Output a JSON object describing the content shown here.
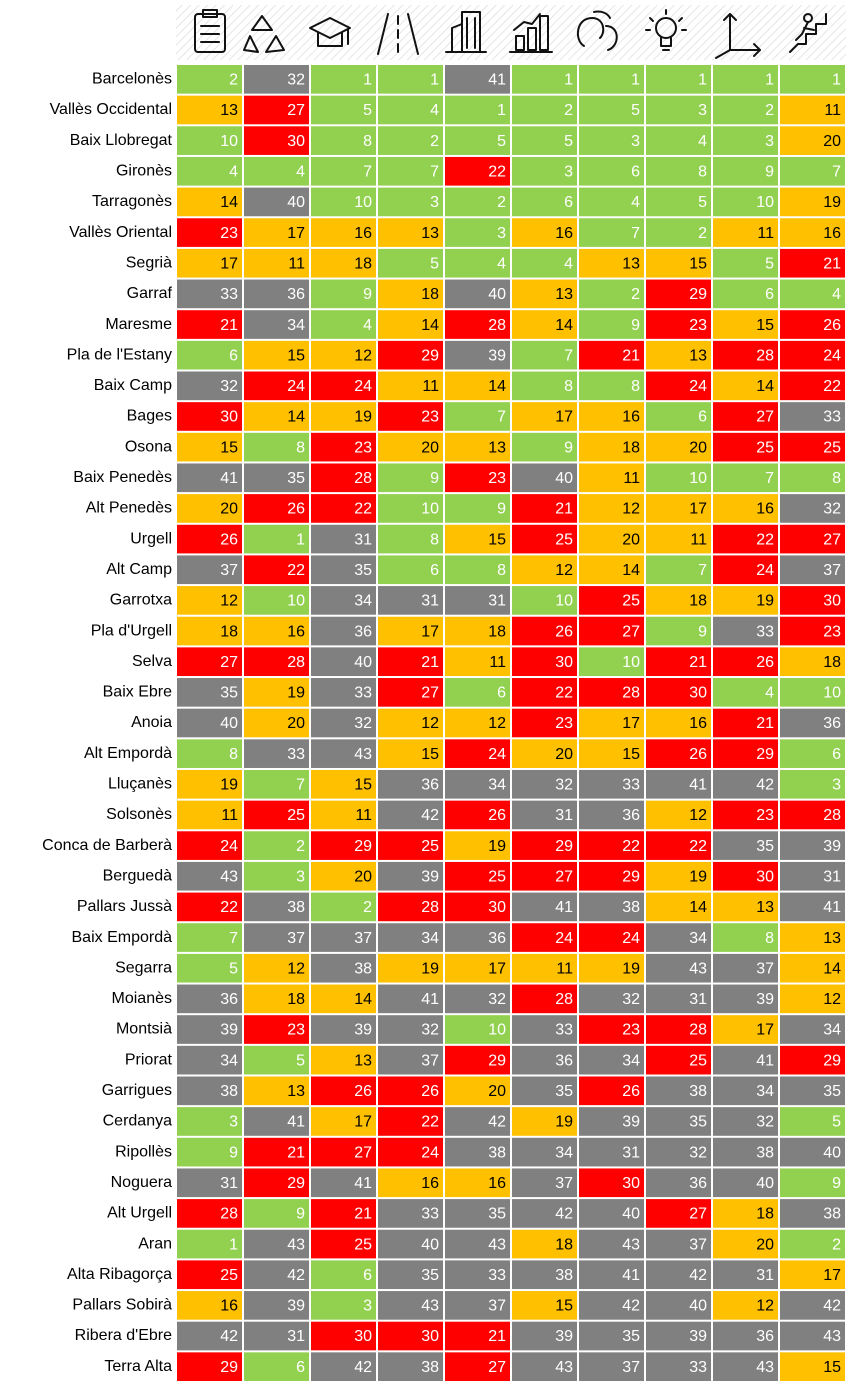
{
  "chart_data": {
    "type": "heatmap",
    "categories": [
      "Barcelonès",
      "Vallès Occidental",
      "Baix Llobregat",
      "Gironès",
      "Tarragonès",
      "Vallès Oriental",
      "Segrià",
      "Garraf",
      "Maresme",
      "Pla de l'Estany",
      "Baix Camp",
      "Bages",
      "Osona",
      "Baix Penedès",
      "Alt Penedès",
      "Urgell",
      "Alt Camp",
      "Garrotxa",
      "Pla d'Urgell",
      "Selva",
      "Baix Ebre",
      "Anoia",
      "Alt Empordà",
      "Lluçanès",
      "Solsonès",
      "Conca de Barberà",
      "Berguedà",
      "Pallars Jussà",
      "Baix Empordà",
      "Segarra",
      "Moianès",
      "Montsià",
      "Priorat",
      "Garrigues",
      "Cerdanya",
      "Ripollès",
      "Noguera",
      "Alt Urgell",
      "Aran",
      "Alta Ribagorça",
      "Pallars Sobirà",
      "Ribera d'Ebre",
      "Terra Alta"
    ],
    "values": [
      [
        2,
        32,
        1,
        1,
        41,
        1,
        1,
        1,
        1,
        1
      ],
      [
        13,
        27,
        5,
        4,
        1,
        2,
        5,
        3,
        2,
        11
      ],
      [
        10,
        30,
        8,
        2,
        5,
        5,
        3,
        4,
        3,
        20
      ],
      [
        4,
        4,
        7,
        7,
        22,
        3,
        6,
        8,
        9,
        7
      ],
      [
        14,
        40,
        10,
        3,
        2,
        6,
        4,
        5,
        10,
        19
      ],
      [
        23,
        17,
        16,
        13,
        3,
        16,
        7,
        2,
        11,
        16
      ],
      [
        17,
        11,
        18,
        5,
        4,
        4,
        13,
        15,
        5,
        21
      ],
      [
        33,
        36,
        9,
        18,
        40,
        13,
        2,
        29,
        6,
        4
      ],
      [
        21,
        34,
        4,
        14,
        28,
        14,
        9,
        23,
        15,
        26
      ],
      [
        6,
        15,
        12,
        29,
        39,
        7,
        21,
        13,
        28,
        24
      ],
      [
        32,
        24,
        24,
        11,
        14,
        8,
        8,
        24,
        14,
        22
      ],
      [
        30,
        14,
        19,
        23,
        7,
        17,
        16,
        6,
        27,
        33
      ],
      [
        15,
        8,
        23,
        20,
        13,
        9,
        18,
        20,
        25,
        25
      ],
      [
        41,
        35,
        28,
        9,
        23,
        40,
        11,
        10,
        7,
        8
      ],
      [
        20,
        26,
        22,
        10,
        9,
        21,
        12,
        17,
        16,
        32
      ],
      [
        26,
        1,
        31,
        8,
        15,
        25,
        20,
        11,
        22,
        27
      ],
      [
        37,
        22,
        35,
        6,
        8,
        12,
        14,
        7,
        24,
        37
      ],
      [
        12,
        10,
        34,
        31,
        31,
        10,
        25,
        18,
        19,
        30
      ],
      [
        18,
        16,
        36,
        17,
        18,
        26,
        27,
        9,
        33,
        23
      ],
      [
        27,
        28,
        40,
        21,
        11,
        30,
        10,
        21,
        26,
        18
      ],
      [
        35,
        19,
        33,
        27,
        6,
        22,
        28,
        30,
        4,
        10
      ],
      [
        40,
        20,
        32,
        12,
        12,
        23,
        17,
        16,
        21,
        36
      ],
      [
        8,
        33,
        43,
        15,
        24,
        20,
        15,
        26,
        29,
        6
      ],
      [
        19,
        7,
        15,
        36,
        34,
        32,
        33,
        41,
        42,
        3
      ],
      [
        11,
        25,
        11,
        42,
        26,
        31,
        36,
        12,
        23,
        28
      ],
      [
        24,
        2,
        29,
        25,
        19,
        29,
        22,
        22,
        35,
        39
      ],
      [
        43,
        3,
        20,
        39,
        25,
        27,
        29,
        19,
        30,
        31
      ],
      [
        22,
        38,
        2,
        28,
        30,
        41,
        38,
        14,
        13,
        41
      ],
      [
        7,
        37,
        37,
        34,
        36,
        24,
        24,
        34,
        8,
        13
      ],
      [
        5,
        12,
        38,
        19,
        17,
        11,
        19,
        43,
        37,
        14
      ],
      [
        36,
        18,
        14,
        41,
        32,
        28,
        32,
        31,
        39,
        12
      ],
      [
        39,
        23,
        39,
        32,
        10,
        33,
        23,
        28,
        17,
        34
      ],
      [
        34,
        5,
        13,
        37,
        29,
        36,
        34,
        25,
        41,
        29
      ],
      [
        38,
        13,
        26,
        26,
        20,
        35,
        26,
        38,
        34,
        35
      ],
      [
        3,
        41,
        17,
        22,
        42,
        19,
        39,
        35,
        32,
        5
      ],
      [
        9,
        21,
        27,
        24,
        38,
        34,
        31,
        32,
        38,
        40
      ],
      [
        31,
        29,
        41,
        16,
        16,
        37,
        30,
        36,
        40,
        9
      ],
      [
        28,
        9,
        21,
        33,
        35,
        42,
        40,
        27,
        18,
        38
      ],
      [
        1,
        43,
        25,
        40,
        43,
        18,
        43,
        37,
        20,
        2
      ],
      [
        25,
        42,
        6,
        35,
        33,
        38,
        41,
        42,
        31,
        17
      ],
      [
        16,
        39,
        3,
        43,
        37,
        15,
        42,
        40,
        12,
        42
      ],
      [
        42,
        31,
        30,
        30,
        21,
        39,
        35,
        39,
        36,
        43
      ],
      [
        29,
        6,
        42,
        38,
        27,
        43,
        37,
        33,
        43,
        15
      ]
    ],
    "color_scale": [
      {
        "max": 10,
        "fill": "#92d050",
        "text": "#ffffff"
      },
      {
        "max": 20,
        "fill": "#ffc000",
        "text": "#000000"
      },
      {
        "max": 30,
        "fill": "#ff0000",
        "text": "#ffffff"
      },
      {
        "max": 43,
        "fill": "#808080",
        "text": "#ffffff"
      }
    ]
  }
}
